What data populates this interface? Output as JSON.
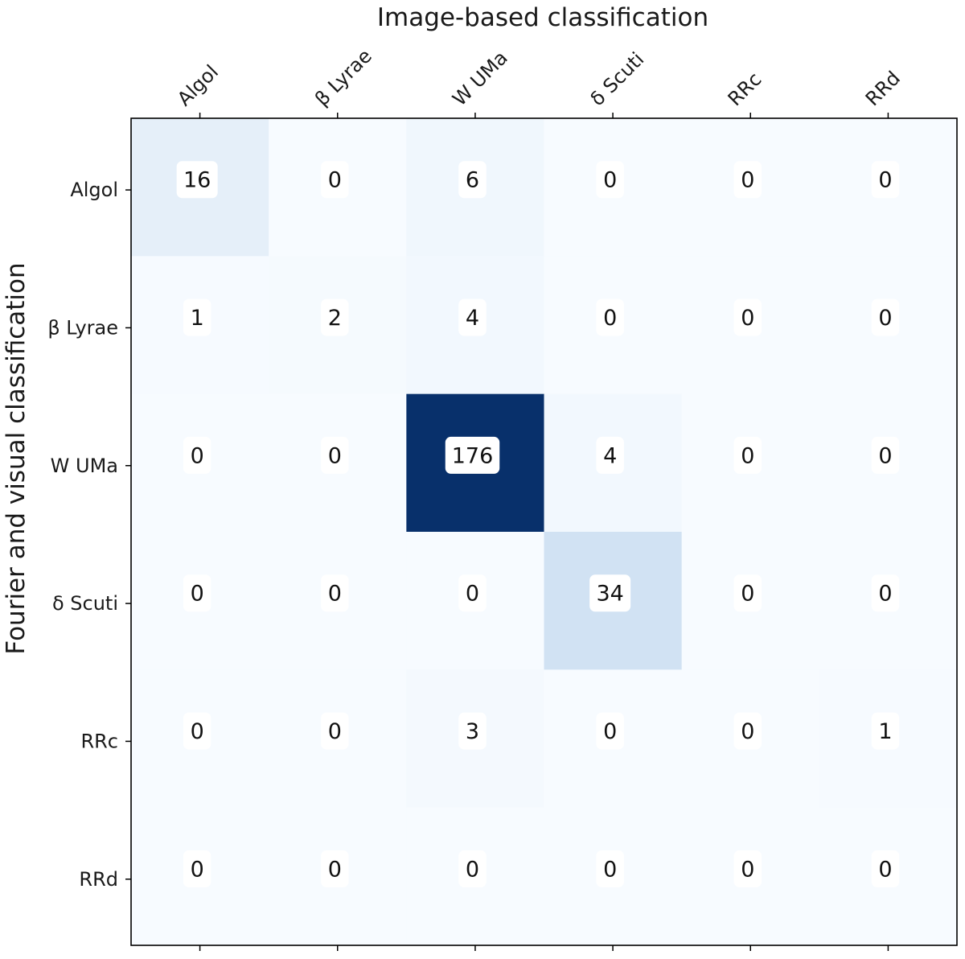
{
  "chart_data": {
    "type": "heatmap",
    "title": "",
    "xlabel": "Image-based classification",
    "ylabel": "Fourier and visual classification",
    "x_categories": [
      "Algol",
      "β Lyrae",
      "W UMa",
      "δ Scuti",
      "RRc",
      "RRd"
    ],
    "y_categories": [
      "Algol",
      "β Lyrae",
      "W UMa",
      "δ Scuti",
      "RRc",
      "RRd"
    ],
    "values": [
      [
        16,
        0,
        6,
        0,
        0,
        0
      ],
      [
        1,
        2,
        4,
        0,
        0,
        0
      ],
      [
        0,
        0,
        176,
        4,
        0,
        0
      ],
      [
        0,
        0,
        0,
        34,
        0,
        0
      ],
      [
        0,
        0,
        3,
        0,
        0,
        1
      ],
      [
        0,
        0,
        0,
        0,
        0,
        0
      ]
    ],
    "colormap": "Blues",
    "color_range": [
      0,
      176
    ],
    "x_axis_position": "top",
    "grid": false,
    "legend": "none"
  }
}
